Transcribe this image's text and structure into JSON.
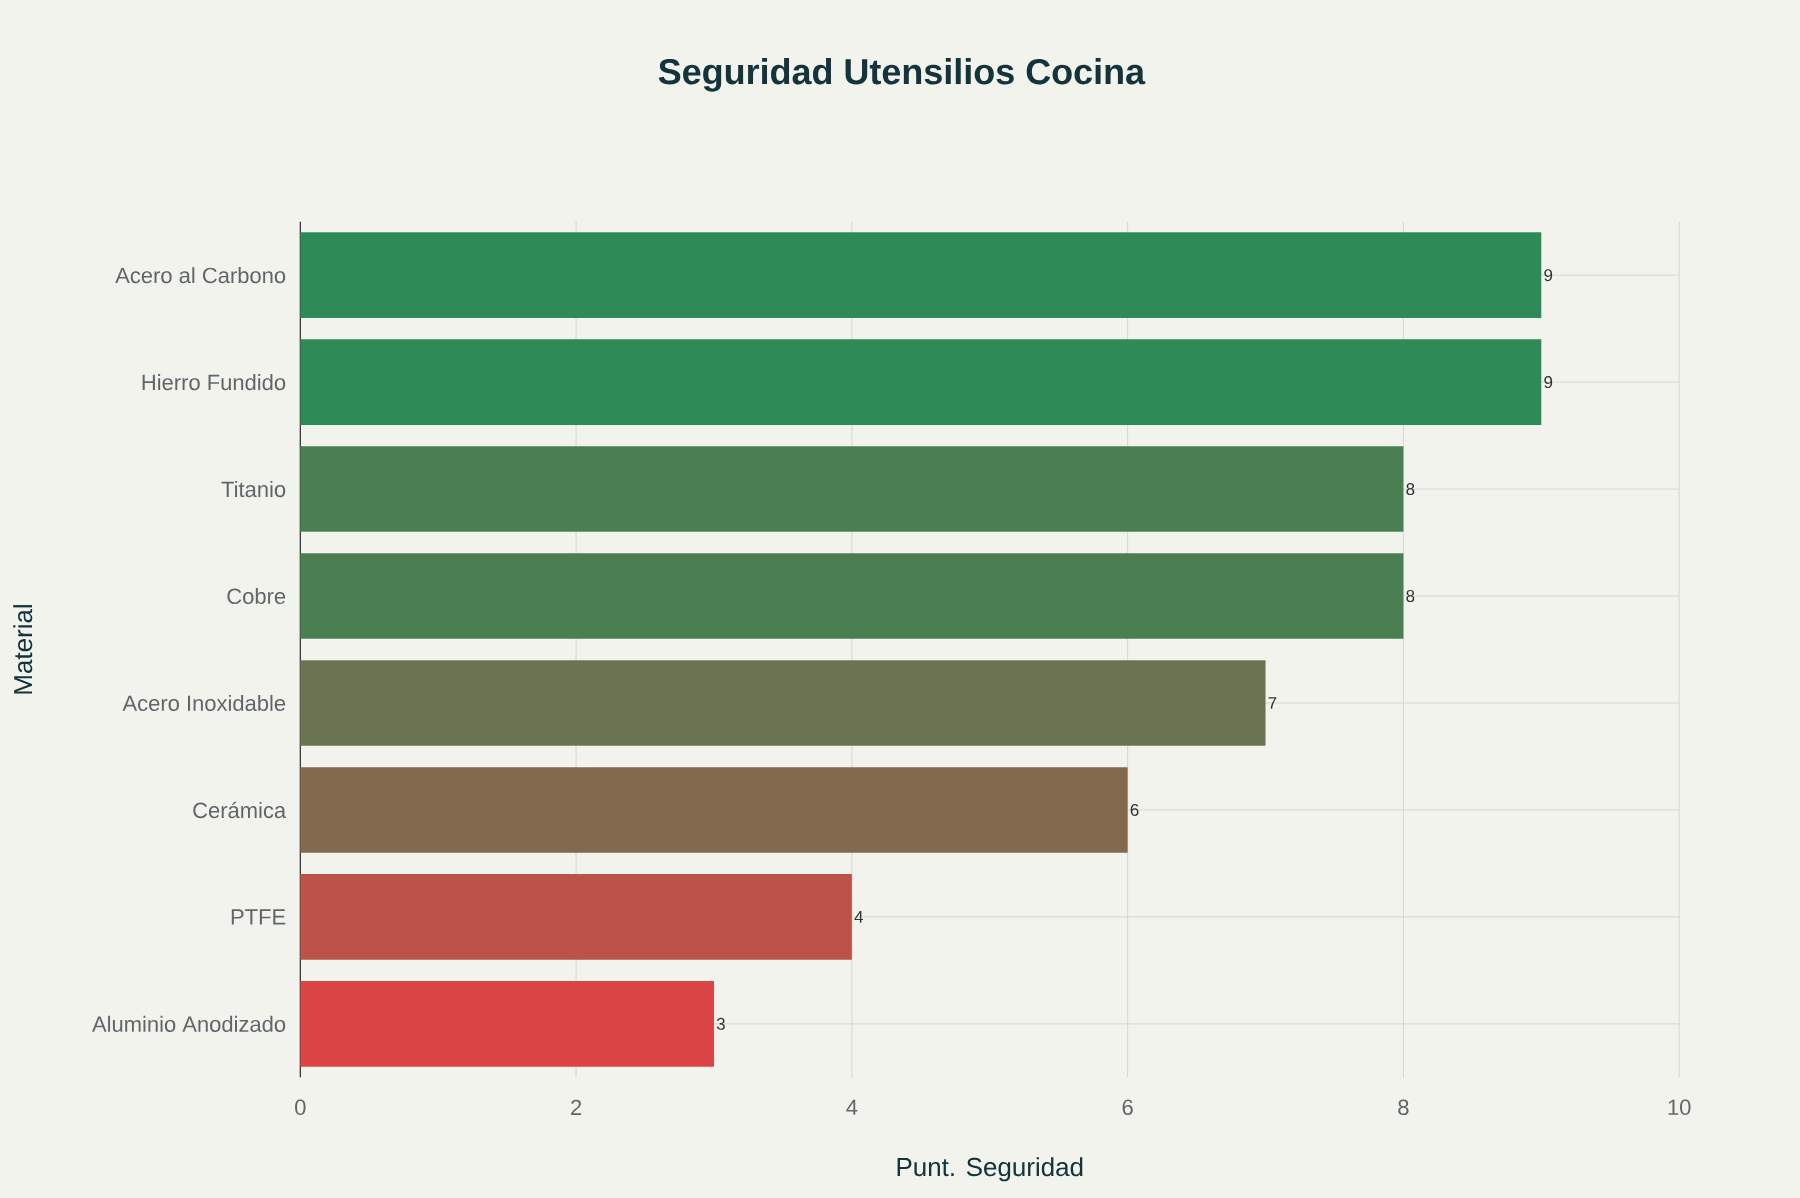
{
  "chart_data": {
    "type": "bar",
    "orientation": "horizontal",
    "title": "Seguridad Utensilios Cocina",
    "xlabel": "Punt. Seguridad",
    "ylabel": "Material",
    "categories": [
      "Acero al Carbono",
      "Hierro Fundido",
      "Titanio",
      "Cobre",
      "Acero Inoxidable",
      "Cerámica",
      "PTFE",
      "Aluminio Anodizado"
    ],
    "values": [
      9,
      9,
      8,
      8,
      7,
      6,
      4,
      3
    ],
    "colors": [
      "#2e8b57",
      "#2e8b57",
      "#4a7f52",
      "#4a7f52",
      "#6b7452",
      "#83694e",
      "#bd5249",
      "#db4444"
    ],
    "xlim": [
      0,
      10
    ],
    "xticks": [
      0,
      2,
      4,
      6,
      8,
      10
    ],
    "grid": true,
    "data_labels": true
  }
}
